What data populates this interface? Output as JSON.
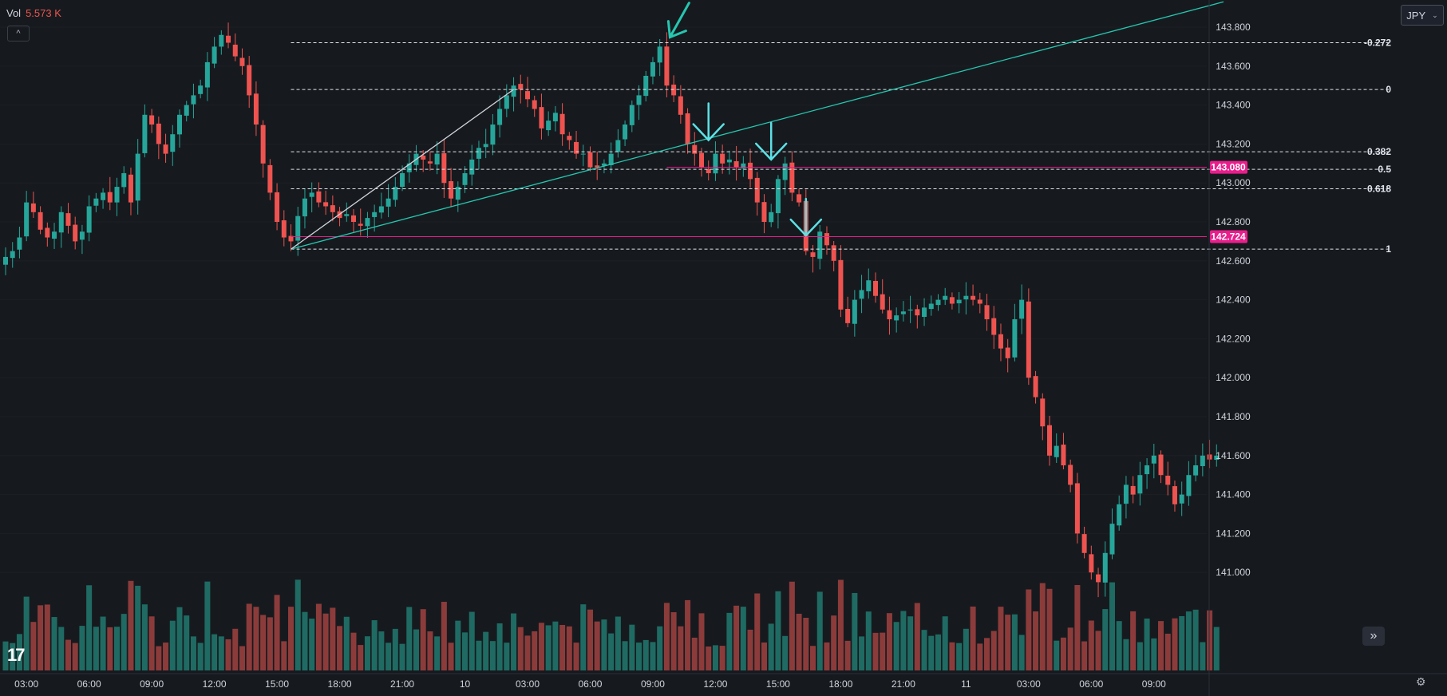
{
  "legend": {
    "label": "Vol",
    "value": "5.573 K"
  },
  "currency": {
    "label": "JPY"
  },
  "buttons": {
    "collapse": "^",
    "scroll_right": "»",
    "settings": "⚙"
  },
  "logo": {
    "text": "TV"
  },
  "colors": {
    "background": "#161a1e",
    "bull": "#26a69a",
    "bear": "#ef5350",
    "bull_volume": "#1f6b63",
    "bear_volume": "#8c3b3b",
    "trendline": "#26c6b0",
    "fib_line": "#e0e3eb",
    "level_line": "#e91e8c",
    "arrow": "#5ce1e6",
    "axis_text": "#d1d4dc",
    "grid": "#1c2026"
  },
  "chart_data": {
    "type": "candlestick",
    "symbol_quote": "JPY",
    "y_axis": {
      "ylim": [
        140.75,
        143.95
      ],
      "ticks": [
        "143.800",
        "143.600",
        "143.400",
        "143.200",
        "143.000",
        "142.800",
        "142.600",
        "142.400",
        "142.200",
        "142.000",
        "141.800",
        "141.600",
        "141.400",
        "141.200",
        "141.000"
      ],
      "tick_values": [
        143.8,
        143.6,
        143.4,
        143.2,
        143.0,
        142.8,
        142.6,
        142.4,
        142.2,
        142.0,
        141.8,
        141.6,
        141.4,
        141.2,
        141.0
      ]
    },
    "x_axis": {
      "ticks": [
        "03:00",
        "06:00",
        "09:00",
        "12:00",
        "15:00",
        "18:00",
        "21:00",
        "10",
        "03:00",
        "06:00",
        "09:00",
        "12:00",
        "15:00",
        "18:00",
        "21:00",
        "11",
        "03:00",
        "06:00",
        "09:00"
      ],
      "tick_index": [
        3,
        12,
        21,
        30,
        39,
        48,
        57,
        66,
        75,
        84,
        93,
        102,
        111,
        120,
        129,
        138,
        147,
        156,
        165
      ]
    },
    "price_labels": [
      {
        "text": "143.080",
        "value": 143.08
      },
      {
        "text": "142.724",
        "value": 142.724
      }
    ],
    "fib_levels": [
      {
        "label": "-0.272",
        "value": 143.72
      },
      {
        "label": "0",
        "value": 143.48
      },
      {
        "label": "0.382",
        "value": 143.16
      },
      {
        "label": "0.5",
        "value": 143.07
      },
      {
        "label": "0.618",
        "value": 142.97
      },
      {
        "label": "1",
        "value": 142.66
      }
    ],
    "horizontal_levels": [
      143.08,
      142.724
    ],
    "trendlines": [
      {
        "name": "rising",
        "from": [
          41,
          142.66
        ],
        "to": [
          175,
          143.93
        ]
      },
      {
        "name": "swing",
        "from": [
          41,
          142.66
        ],
        "to": [
          73,
          143.48
        ]
      }
    ],
    "arrows": [
      {
        "index": 95,
        "value": 143.74,
        "style": "diagonal"
      },
      {
        "index": 101,
        "value": 143.22,
        "style": "down"
      },
      {
        "index": 110,
        "value": 143.12,
        "style": "down"
      },
      {
        "index": 115,
        "value": 142.73,
        "style": "down"
      }
    ],
    "candles_close": [
      142.62,
      142.65,
      142.72,
      142.9,
      142.85,
      142.76,
      142.72,
      142.75,
      142.85,
      142.78,
      142.7,
      142.75,
      142.88,
      142.92,
      142.95,
      142.9,
      142.98,
      143.05,
      142.9,
      143.15,
      143.35,
      143.3,
      143.2,
      143.15,
      143.25,
      143.35,
      143.4,
      143.45,
      143.5,
      143.62,
      143.7,
      143.76,
      143.72,
      143.65,
      143.6,
      143.45,
      143.3,
      143.1,
      142.95,
      142.8,
      142.72,
      142.7,
      142.83,
      142.92,
      142.95,
      142.9,
      142.88,
      142.85,
      142.82,
      142.84,
      142.8,
      142.78,
      142.82,
      142.85,
      142.88,
      142.92,
      142.98,
      143.05,
      143.1,
      143.15,
      143.12,
      143.1,
      143.15,
      143.0,
      142.92,
      142.98,
      143.05,
      143.12,
      143.18,
      143.2,
      143.3,
      143.38,
      143.45,
      143.5,
      143.48,
      143.43,
      143.38,
      143.28,
      143.32,
      143.36,
      143.25,
      143.22,
      143.15,
      143.15,
      143.08,
      143.08,
      143.1,
      143.15,
      143.22,
      143.3,
      143.4,
      143.45,
      143.55,
      143.62,
      143.7,
      143.5,
      143.45,
      143.35,
      143.2,
      143.15,
      143.08,
      143.05,
      143.15,
      143.1,
      143.12,
      143.08,
      143.1,
      143.02,
      142.9,
      142.8,
      142.85,
      143.02,
      143.1,
      142.95,
      142.9,
      142.65,
      142.62,
      142.75,
      142.68,
      142.6,
      142.35,
      142.28,
      142.4,
      142.45,
      142.5,
      142.42,
      142.35,
      142.3,
      142.32,
      142.34,
      142.35,
      142.32,
      142.36,
      142.38,
      142.4,
      142.42,
      142.38,
      142.4,
      142.42,
      142.4,
      142.38,
      142.3,
      142.22,
      142.15,
      142.1,
      142.3,
      142.4,
      142.0,
      141.9,
      141.75,
      141.6,
      141.65,
      141.55,
      141.45,
      141.2,
      141.1,
      141.0,
      140.95,
      141.1,
      141.25,
      141.35,
      141.45,
      141.4,
      141.5,
      141.55,
      141.6,
      141.5,
      141.45,
      141.35,
      141.4,
      141.5,
      141.55,
      141.6,
      141.58,
      141.6
    ]
  }
}
